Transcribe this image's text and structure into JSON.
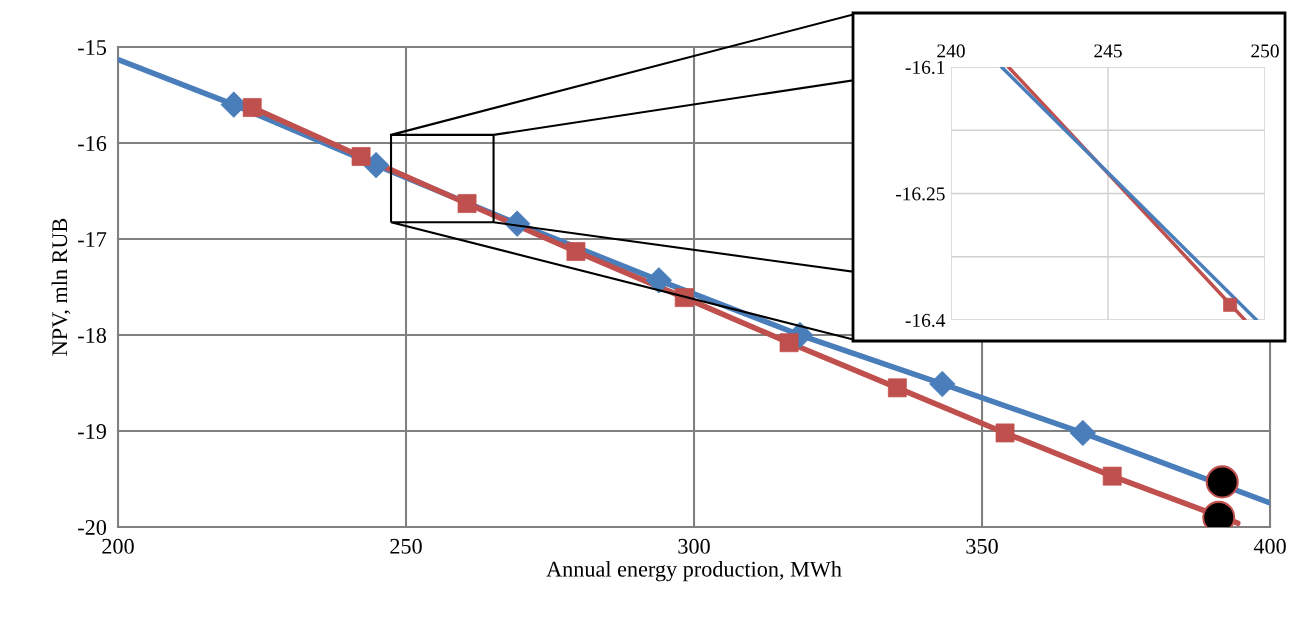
{
  "chart_data": [
    {
      "type": "line",
      "xlabel": "Annual energy production, MWh",
      "ylabel": "NPV, mln RUB",
      "xlim": [
        200,
        400
      ],
      "xticks": [
        200,
        250,
        300,
        350,
        400
      ],
      "ylim": [
        -20,
        -15
      ],
      "yticks": [
        -20,
        -19,
        -18,
        -17,
        -16,
        -15
      ],
      "grid": true,
      "series": [
        {
          "type": "line",
          "marker": "none",
          "color": "#4a7ebb",
          "x": [
            200,
            220.1,
            244.8,
            269.3,
            293.9,
            318.4,
            343.1,
            367.5,
            400
          ],
          "values": [
            -15.13,
            -15.6,
            -16.23,
            -16.84,
            -17.43,
            -18.0,
            -18.51,
            -19.02,
            -19.75
          ]
        },
        {
          "type": "line",
          "marker": "none",
          "color": "#c0504d",
          "x": [
            223.3,
            242.2,
            260.6,
            279.5,
            298.3,
            316.5,
            335.3,
            354.0,
            372.6,
            394.4
          ],
          "values": [
            -15.63,
            -16.14,
            -16.63,
            -17.13,
            -17.61,
            -18.08,
            -18.55,
            -19.02,
            -19.47,
            -19.96
          ]
        },
        {
          "type": "scatter",
          "marker": "diamond",
          "color": "#4a7ebb",
          "x": [
            220.1,
            244.8,
            269.3,
            293.9,
            318.4,
            343.1,
            367.5
          ],
          "values": [
            -15.6,
            -16.23,
            -16.84,
            -17.43,
            -18.0,
            -18.51,
            -19.02
          ]
        },
        {
          "type": "scatter",
          "marker": "square",
          "color": "#c0504d",
          "x": [
            223.3,
            242.2,
            260.6,
            279.5,
            298.3,
            316.5,
            335.3,
            354.0,
            372.6
          ],
          "values": [
            -15.63,
            -16.14,
            -16.63,
            -17.13,
            -17.61,
            -18.08,
            -18.55,
            -19.02,
            -19.47
          ]
        },
        {
          "type": "scatter",
          "marker": "circle",
          "color": "#000000",
          "x": [
            391.7,
            391.1
          ],
          "values": [
            -19.53,
            -19.9
          ]
        }
      ]
    },
    {
      "type": "line",
      "xlim": [
        240,
        250
      ],
      "xticks": [
        240,
        245,
        250
      ],
      "ylim": [
        -16.4,
        -16.1
      ],
      "yticks": [
        -16.4,
        {
          "value": -16.325,
          "label": null
        },
        -16.25,
        {
          "value": -16.175,
          "label": null
        },
        -16.1
      ],
      "grid": true,
      "series": [
        {
          "type": "line",
          "marker": "none",
          "color": "#c0504d",
          "x": [
            241.83,
            249.36
          ],
          "values": [
            -16.1,
            -16.4
          ]
        },
        {
          "type": "line",
          "marker": "none",
          "color": "#4a7ebb",
          "x": [
            241.61,
            249.73
          ],
          "values": [
            -16.1,
            -16.4
          ]
        },
        {
          "type": "scatter",
          "marker": "square",
          "color": "#c0504d",
          "x": [
            248.89
          ],
          "values": [
            -16.382
          ]
        }
      ]
    }
  ]
}
